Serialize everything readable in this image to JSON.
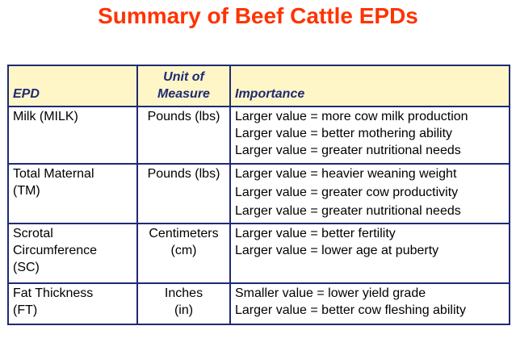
{
  "title": "Summary of Beef Cattle EPDs",
  "table": {
    "headers": {
      "epd": "EPD",
      "unit_line1": "Unit of",
      "unit_line2": "Measure",
      "importance": "Importance"
    },
    "rows": [
      {
        "epd_line1": "Milk (MILK)",
        "epd_line2": "",
        "epd_line3": "",
        "unit_line1": "Pounds (lbs)",
        "unit_line2": "",
        "importance": [
          "Larger value = more cow milk production",
          "Larger value = better mothering ability",
          "Larger value = greater nutritional needs"
        ]
      },
      {
        "epd_line1": "Total Maternal",
        "epd_line2": "(TM)",
        "epd_line3": "",
        "unit_line1": "Pounds (lbs)",
        "unit_line2": "",
        "importance": [
          "Larger value = heavier weaning weight",
          "Larger value = greater cow productivity",
          "Larger value = greater nutritional needs"
        ]
      },
      {
        "epd_line1": "Scrotal",
        "epd_line2": "Circumference",
        "epd_line3": "(SC)",
        "unit_line1": "Centimeters",
        "unit_line2": "(cm)",
        "importance": [
          "Larger value = better fertility",
          "Larger value = lower age at puberty"
        ]
      },
      {
        "epd_line1": "Fat Thickness",
        "epd_line2": "(FT)",
        "epd_line3": "",
        "unit_line1": "Inches",
        "unit_line2": "(in)",
        "importance": [
          "Smaller value = lower yield grade",
          "Larger value = better cow fleshing ability"
        ]
      }
    ]
  },
  "colors": {
    "title": "#ff3300",
    "header_background": "#fff6c8",
    "header_text": "#1f2a73",
    "border": "#1f2a73"
  }
}
